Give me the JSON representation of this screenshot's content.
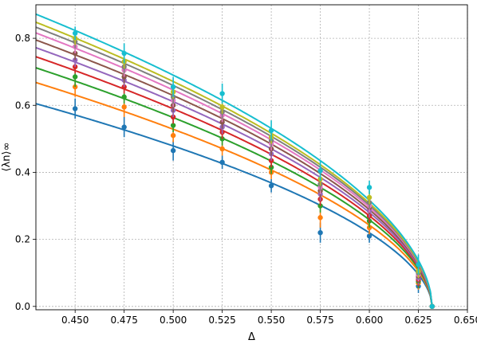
{
  "chart_data": {
    "type": "line",
    "xlabel": "Δ",
    "ylabel": "⟨λn⟩∞",
    "xlim": [
      0.43,
      0.65
    ],
    "ylim": [
      -0.01,
      0.9
    ],
    "x_ticks": [
      "0.450",
      "0.475",
      "0.500",
      "0.525",
      "0.550",
      "0.575",
      "0.600",
      "0.625",
      "0.650"
    ],
    "y_ticks": [
      "0.0",
      "0.2",
      "0.4",
      "0.6",
      "0.8"
    ],
    "grid": true,
    "x_points": [
      0.45,
      0.475,
      0.5,
      0.525,
      0.55,
      0.575,
      0.6,
      0.625,
      0.632
    ],
    "series": [
      {
        "color": "#1f77b4",
        "curve": {
          "x0": 0.632,
          "y_at_0_43": 0.605
        },
        "points": [
          0.59,
          0.535,
          0.465,
          0.43,
          0.36,
          0.22,
          0.21,
          0.06,
          0.0
        ],
        "errors": [
          0.03,
          0.03,
          0.03,
          0.02,
          0.02,
          0.03,
          0.02,
          0.02,
          0.0
        ]
      },
      {
        "color": "#ff7f0e",
        "curve": {
          "x0": 0.632,
          "y_at_0_43": 0.668
        },
        "points": [
          0.655,
          0.595,
          0.51,
          0.47,
          0.4,
          0.265,
          0.235,
          0.07,
          0.0
        ],
        "errors": [
          0.03,
          0.03,
          0.02,
          0.02,
          0.02,
          0.03,
          0.02,
          0.02,
          0.0
        ]
      },
      {
        "color": "#2ca02c",
        "curve": {
          "x0": 0.632,
          "y_at_0_43": 0.712
        },
        "points": [
          0.685,
          0.625,
          0.54,
          0.5,
          0.415,
          0.3,
          0.255,
          0.075,
          0.0
        ],
        "errors": [
          0.03,
          0.02,
          0.02,
          0.02,
          0.02,
          0.02,
          0.02,
          0.02,
          0.0
        ]
      },
      {
        "color": "#d62728",
        "curve": {
          "x0": 0.632,
          "y_at_0_43": 0.745
        },
        "points": [
          0.715,
          0.655,
          0.565,
          0.52,
          0.435,
          0.32,
          0.27,
          0.08,
          0.0
        ],
        "errors": [
          0.02,
          0.02,
          0.02,
          0.02,
          0.02,
          0.02,
          0.02,
          0.02,
          0.0
        ]
      },
      {
        "color": "#9467bd",
        "curve": {
          "x0": 0.632,
          "y_at_0_43": 0.772
        },
        "points": [
          0.735,
          0.675,
          0.585,
          0.535,
          0.455,
          0.335,
          0.285,
          0.085,
          0.0
        ],
        "errors": [
          0.02,
          0.02,
          0.02,
          0.02,
          0.02,
          0.02,
          0.02,
          0.02,
          0.0
        ]
      },
      {
        "color": "#8c564b",
        "curve": {
          "x0": 0.632,
          "y_at_0_43": 0.795
        },
        "points": [
          0.755,
          0.685,
          0.6,
          0.55,
          0.47,
          0.345,
          0.295,
          0.09,
          0.0
        ],
        "errors": [
          0.02,
          0.02,
          0.02,
          0.02,
          0.02,
          0.02,
          0.02,
          0.02,
          0.0
        ]
      },
      {
        "color": "#e377c2",
        "curve": {
          "x0": 0.632,
          "y_at_0_43": 0.816
        },
        "points": [
          0.775,
          0.705,
          0.615,
          0.57,
          0.485,
          0.355,
          0.3,
          0.095,
          0.0
        ],
        "errors": [
          0.02,
          0.02,
          0.02,
          0.02,
          0.02,
          0.02,
          0.02,
          0.02,
          0.0
        ]
      },
      {
        "color": "#7f7f7f",
        "curve": {
          "x0": 0.632,
          "y_at_0_43": 0.833
        },
        "points": [
          0.79,
          0.715,
          0.625,
          0.58,
          0.495,
          0.365,
          0.31,
          0.1,
          0.0
        ],
        "errors": [
          0.02,
          0.02,
          0.02,
          0.02,
          0.02,
          0.02,
          0.02,
          0.02,
          0.0
        ]
      },
      {
        "color": "#bcbd22",
        "curve": {
          "x0": 0.632,
          "y_at_0_43": 0.848
        },
        "points": [
          0.8,
          0.73,
          0.64,
          0.595,
          0.505,
          0.38,
          0.325,
          0.105,
          0.0
        ],
        "errors": [
          0.02,
          0.02,
          0.02,
          0.02,
          0.02,
          0.02,
          0.02,
          0.02,
          0.0
        ]
      },
      {
        "color": "#17becf",
        "curve": {
          "x0": 0.632,
          "y_at_0_43": 0.872
        },
        "points": [
          0.815,
          0.755,
          0.655,
          0.635,
          0.525,
          0.405,
          0.355,
          0.125,
          0.0
        ],
        "errors": [
          0.02,
          0.03,
          0.03,
          0.03,
          0.03,
          0.03,
          0.02,
          0.03,
          0.0
        ]
      }
    ]
  }
}
